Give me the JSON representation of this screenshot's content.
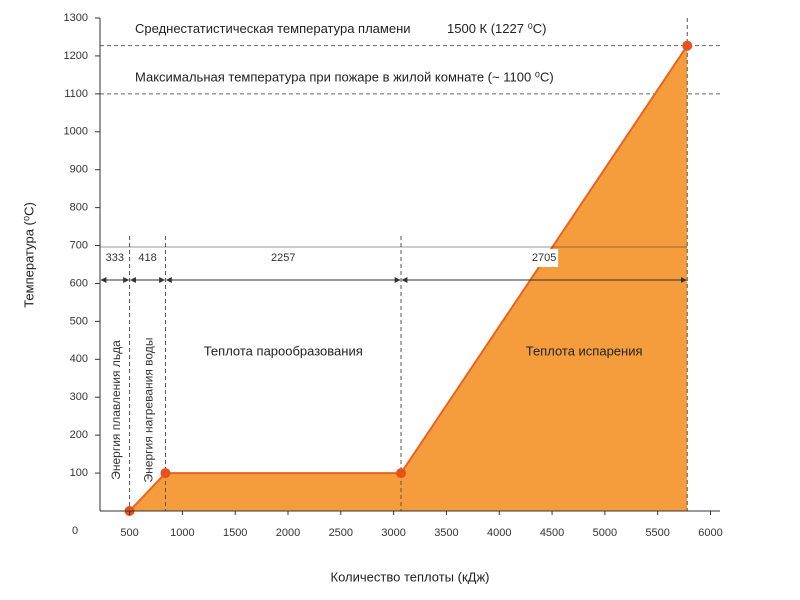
{
  "chart_data": {
    "type": "area",
    "ylabel": "Температура (⁰С)",
    "xlabel": "Количество теплоты (кДж)",
    "x": [
      500,
      840,
      3070,
      5780
    ],
    "y": [
      0,
      100,
      100,
      1227
    ],
    "color": "#f59d3d",
    "line_color": "#e8641e",
    "point_color": "#e8501c",
    "xlim": [
      220,
      6090
    ],
    "ylim": [
      0,
      1300
    ],
    "xticks": [
      500,
      1000,
      1500,
      2000,
      2500,
      3000,
      3500,
      4000,
      4500,
      5000,
      5500,
      6000
    ],
    "yticks": [
      0,
      100,
      200,
      300,
      400,
      500,
      600,
      700,
      800,
      900,
      1000,
      1100,
      1200,
      1300
    ],
    "hlines": [
      {
        "y": 1227,
        "text": "Среднестатистическая температура пламени",
        "value_text": "1500 К (1227 ⁰С)"
      },
      {
        "y": 1100,
        "text": "Максимальная температура при пожаре в жилой комнате (~ 1100 ⁰С)"
      }
    ],
    "intervals": [
      333,
      418,
      2257,
      2705
    ],
    "phase_labels": [
      "Энергия плавления льда",
      "Энергия нагревания воды"
    ],
    "area_labels": [
      "Теплота парообразования",
      "Теплота испарения"
    ]
  }
}
